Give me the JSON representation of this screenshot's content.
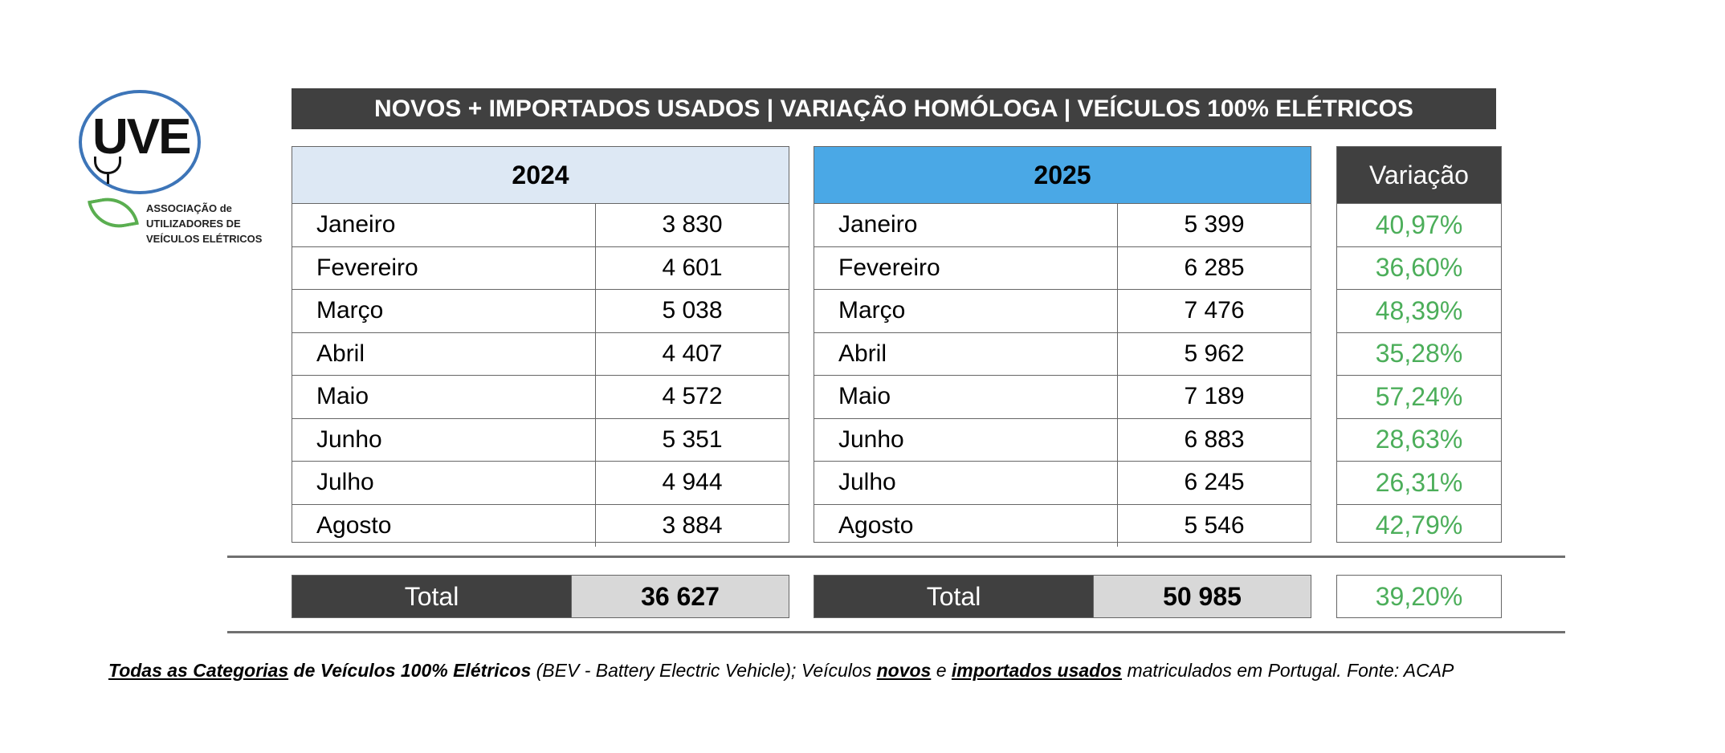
{
  "logo": {
    "mark": "UVE",
    "assoc_lines": [
      "ASSOCIAÇÃO de",
      "UTILIZADORES DE",
      "VEÍCULOS ELÉTRICOS"
    ]
  },
  "title": "NOVOS + IMPORTADOS USADOS | VARIAÇÃO HOMÓLOGA | VEÍCULOS 100% ELÉTRICOS",
  "table_2024": {
    "year": "2024",
    "header_color": "#dde8f4",
    "rows": [
      {
        "month": "Janeiro",
        "value": "3 830"
      },
      {
        "month": "Fevereiro",
        "value": "4 601"
      },
      {
        "month": "Março",
        "value": "5 038"
      },
      {
        "month": "Abril",
        "value": "4 407"
      },
      {
        "month": "Maio",
        "value": "4 572"
      },
      {
        "month": "Junho",
        "value": "5 351"
      },
      {
        "month": "Julho",
        "value": "4 944"
      },
      {
        "month": "Agosto",
        "value": "3 884"
      }
    ],
    "total_label": "Total",
    "total_value": "36 627"
  },
  "table_2025": {
    "year": "2025",
    "header_color": "#4aa8e6",
    "rows": [
      {
        "month": "Janeiro",
        "value": "5 399"
      },
      {
        "month": "Fevereiro",
        "value": "6 285"
      },
      {
        "month": "Março",
        "value": "7 476"
      },
      {
        "month": "Abril",
        "value": "5 962"
      },
      {
        "month": "Maio",
        "value": "7 189"
      },
      {
        "month": "Junho",
        "value": "6 883"
      },
      {
        "month": "Julho",
        "value": "6 245"
      },
      {
        "month": "Agosto",
        "value": "5 546"
      }
    ],
    "total_label": "Total",
    "total_value": "50 985"
  },
  "variation": {
    "header": "Variação",
    "values": [
      "40,97%",
      "36,60%",
      "48,39%",
      "35,28%",
      "57,24%",
      "28,63%",
      "26,31%",
      "42,79%"
    ],
    "total": "39,20%",
    "color": "#4cae5a"
  },
  "footnote": {
    "part1": "Todas as Categorias",
    "part2": " de Veículos 100% Elétricos",
    "part3": " (BEV - Battery Electric Vehicle); Veículos ",
    "part4": "novos",
    "part5": " e ",
    "part6": "importados usados",
    "part7": " matriculados em Portugal. Fonte: ACAP"
  }
}
